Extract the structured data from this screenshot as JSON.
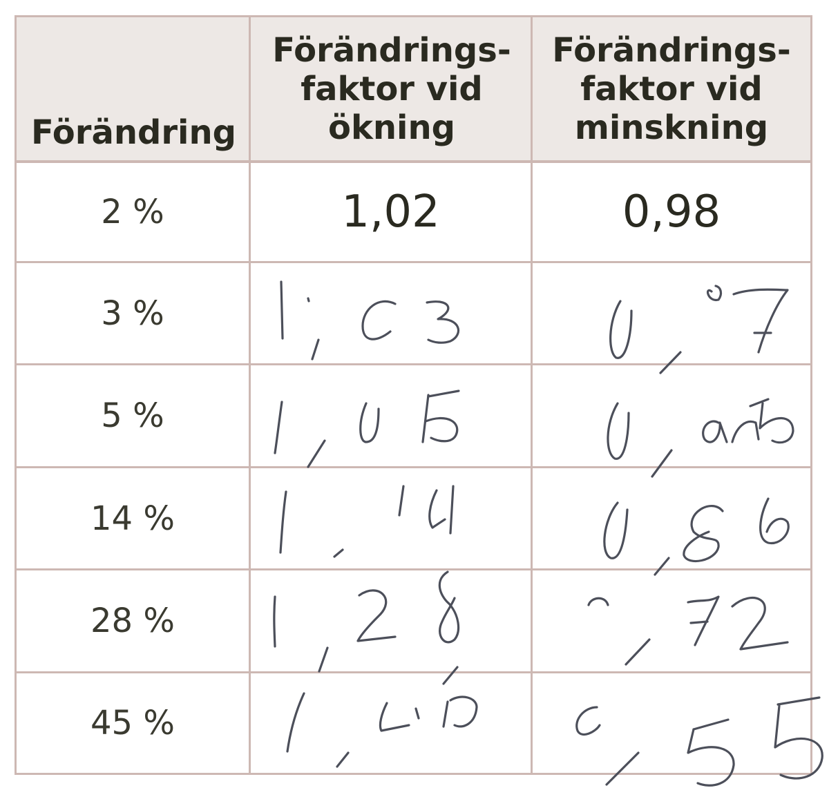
{
  "table": {
    "headers": [
      "Förändring",
      "Förändrings-\nfaktor vid\nökning",
      "Förändrings-\nfaktor vid\nminskning"
    ],
    "rows": [
      {
        "change": "2 %",
        "increase": "1,02",
        "decrease": "0,98"
      },
      {
        "change": "3 %",
        "increase": "1,03",
        "decrease": "0,97"
      },
      {
        "change": "5 %",
        "increase": "1,05",
        "decrease": "0,95"
      },
      {
        "change": "14 %",
        "increase": "1,14",
        "decrease": "0,86"
      },
      {
        "change": "28 %",
        "increase": "1,28",
        "decrease": "0,72"
      },
      {
        "change": "45 %",
        "increase": "1,45",
        "decrease": "0,55"
      }
    ]
  },
  "colors": {
    "border": "#cdb8b3",
    "header_background": "#ede8e5",
    "text": "#2a2a20",
    "handwriting": "#4c4f5a"
  }
}
